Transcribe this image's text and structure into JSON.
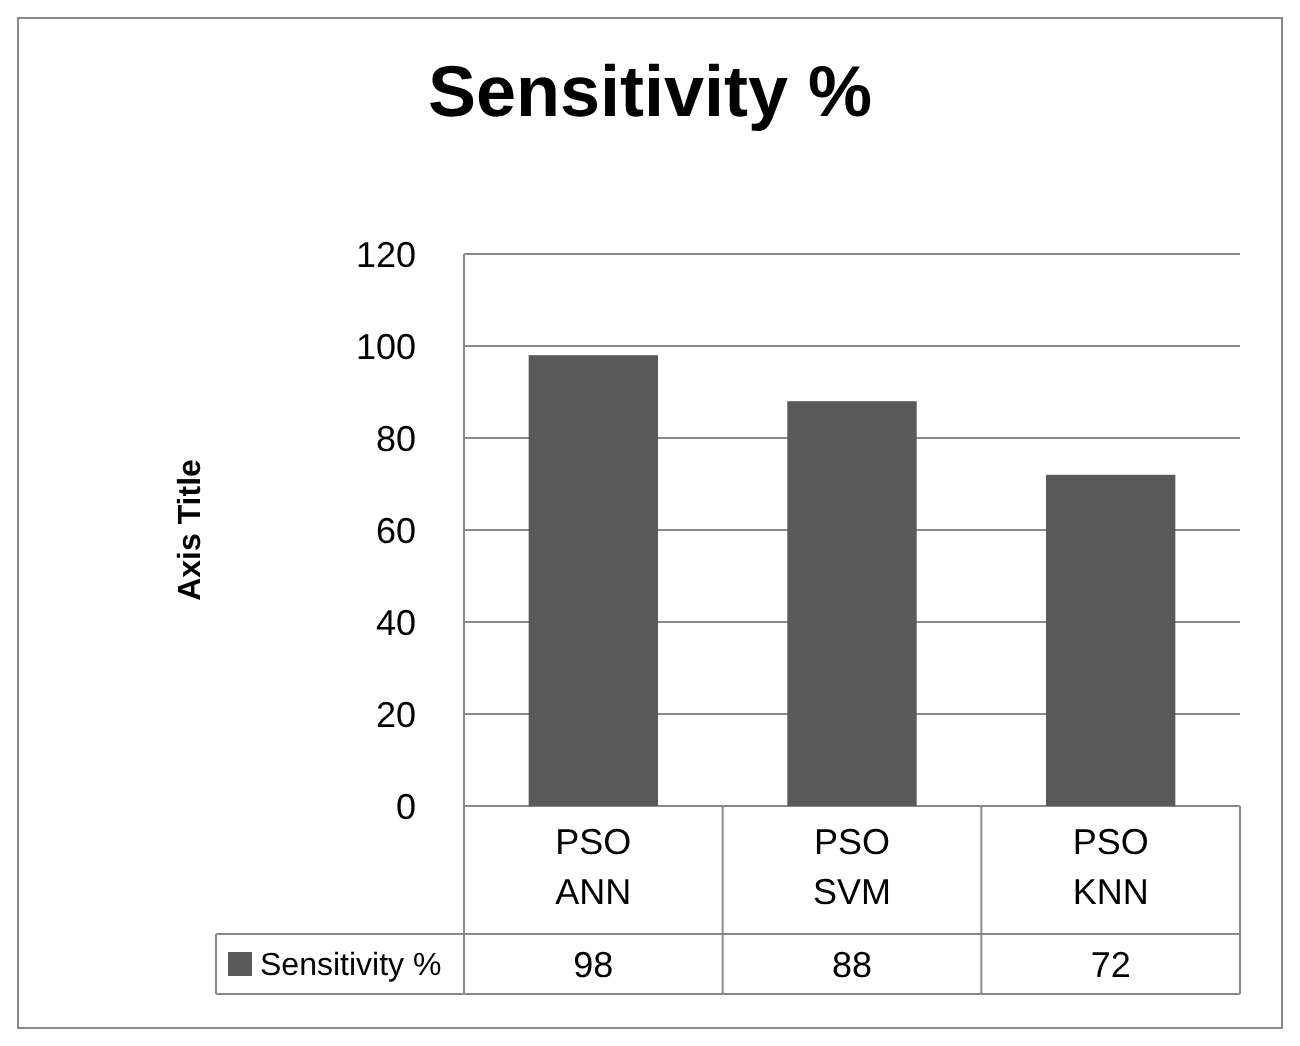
{
  "chart_data": {
    "type": "bar",
    "title": "Sensitivity %",
    "ylabel": "Axis Title",
    "categories": [
      "PSO ANN",
      "PSO SVM",
      "PSO KNN"
    ],
    "series": [
      {
        "name": "Sensitivity %",
        "color": "#595959",
        "values": [
          98,
          88,
          72
        ]
      }
    ],
    "ylim": [
      0,
      120
    ],
    "yticks": [
      0,
      20,
      40,
      60,
      80,
      100,
      120
    ],
    "grid": "y",
    "data_labels": true,
    "legend": "bottom"
  }
}
